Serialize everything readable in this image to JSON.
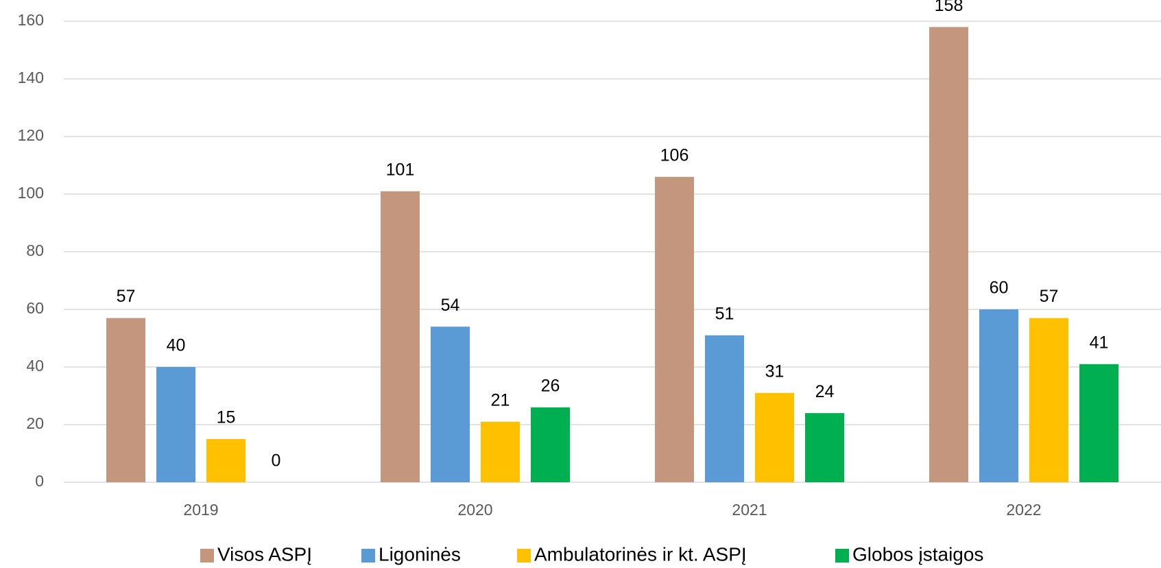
{
  "chart_data": {
    "type": "bar",
    "categories": [
      "2019",
      "2020",
      "2021",
      "2022"
    ],
    "series": [
      {
        "name": "Visos ASPĮ",
        "color": "#c4967e",
        "values": [
          57,
          101,
          106,
          158
        ]
      },
      {
        "name": "Ligoninės",
        "color": "#5b9bd5",
        "values": [
          40,
          54,
          51,
          60
        ]
      },
      {
        "name": "Ambulatorinės ir kt. ASPĮ",
        "color": "#ffc000",
        "values": [
          15,
          21,
          31,
          57
        ]
      },
      {
        "name": "Globos įstaigos",
        "color": "#00b050",
        "values": [
          0,
          26,
          24,
          41
        ]
      }
    ],
    "ylim": [
      0,
      160
    ],
    "yticks": [
      0,
      20,
      40,
      60,
      80,
      100,
      120,
      140,
      160
    ],
    "grid": true,
    "legend": "bottom"
  }
}
